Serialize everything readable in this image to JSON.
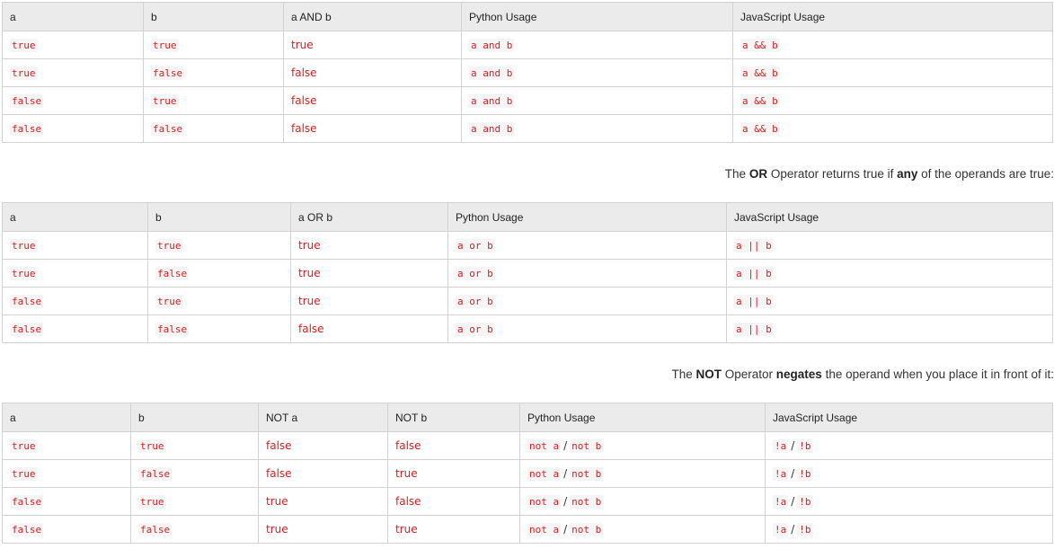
{
  "and_table": {
    "headers": [
      "a",
      "b",
      "a AND b",
      "Python Usage",
      "JavaScript Usage"
    ],
    "rows": [
      {
        "a": "true",
        "b": "true",
        "result": "true",
        "python": "a and b",
        "js": "a && b"
      },
      {
        "a": "true",
        "b": "false",
        "result": "false",
        "python": "a and b",
        "js": "a && b"
      },
      {
        "a": "false",
        "b": "true",
        "result": "false",
        "python": "a and b",
        "js": "a && b"
      },
      {
        "a": "false",
        "b": "false",
        "result": "false",
        "python": "a and b",
        "js": "a && b"
      }
    ]
  },
  "or_caption": {
    "part1": "The ",
    "op": "OR",
    "part2": " Operator returns true if ",
    "emph": "any",
    "part3": " of the operands are true:"
  },
  "or_table": {
    "headers": [
      "a",
      "b",
      "a OR b",
      "Python Usage",
      "JavaScript Usage"
    ],
    "rows": [
      {
        "a": "true",
        "b": "true",
        "result": "true",
        "python": "a or b",
        "js": "a || b"
      },
      {
        "a": "true",
        "b": "false",
        "result": "true",
        "python": "a or b",
        "js": "a || b"
      },
      {
        "a": "false",
        "b": "true",
        "result": "true",
        "python": "a or b",
        "js": "a || b"
      },
      {
        "a": "false",
        "b": "false",
        "result": "false",
        "python": "a or b",
        "js": "a || b"
      }
    ]
  },
  "not_caption": {
    "part1": "The ",
    "op": "NOT",
    "part2": " Operator ",
    "emph": "negates",
    "part3": " the operand when you place it in front of it:"
  },
  "not_table": {
    "headers": [
      "a",
      "b",
      "NOT a",
      "NOT b",
      "Python Usage",
      "JavaScript Usage"
    ],
    "separator": "/",
    "rows": [
      {
        "a": "true",
        "b": "true",
        "not_a": "false",
        "not_b": "false",
        "py_a": "not a",
        "py_b": "not b",
        "js_a": "!a",
        "js_b": "!b"
      },
      {
        "a": "true",
        "b": "false",
        "not_a": "false",
        "not_b": "true",
        "py_a": "not a",
        "py_b": "not b",
        "js_a": "!a",
        "js_b": "!b"
      },
      {
        "a": "false",
        "b": "true",
        "not_a": "true",
        "not_b": "false",
        "py_a": "not a",
        "py_b": "not b",
        "js_a": "!a",
        "js_b": "!b"
      },
      {
        "a": "false",
        "b": "false",
        "not_a": "true",
        "not_b": "true",
        "py_a": "not a",
        "py_b": "not b",
        "js_a": "!a",
        "js_b": "!b"
      }
    ]
  }
}
